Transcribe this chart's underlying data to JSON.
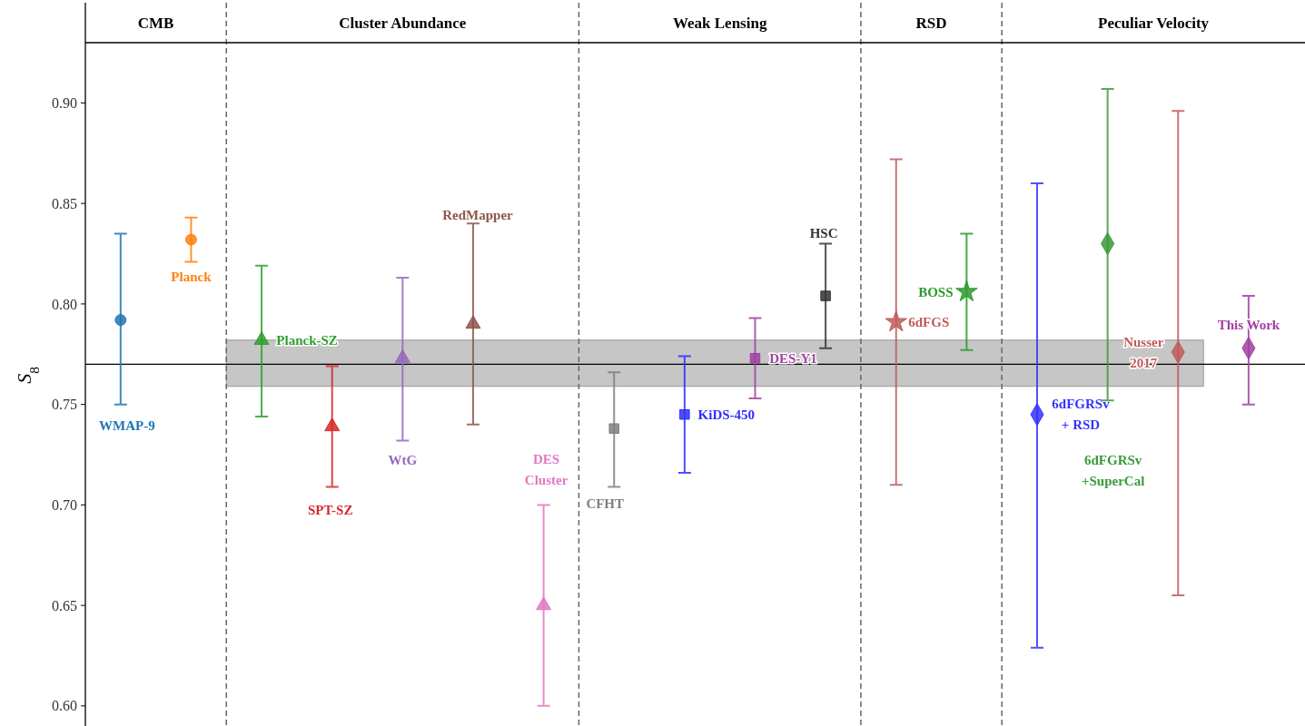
{
  "chart_data": {
    "type": "scatter",
    "ylabel": "S$_{8}$",
    "categories": [
      null,
      null,
      null,
      null,
      null,
      null,
      null,
      null,
      null,
      null,
      null,
      null,
      null,
      null,
      null,
      null,
      null
    ],
    "ylim": [
      0.59,
      0.93
    ],
    "yticks": [
      {
        "value": 0.6,
        "label": "0.60"
      },
      {
        "value": 0.65,
        "label": "0.65"
      },
      {
        "value": 0.7,
        "label": "0.70"
      },
      {
        "value": 0.75,
        "label": "0.75"
      },
      {
        "value": 0.8,
        "label": "0.80"
      },
      {
        "value": 0.85,
        "label": "0.85"
      },
      {
        "value": 0.9,
        "label": "0.90"
      }
    ],
    "tick_labels": "y",
    "grid": false,
    "annotations": [
      "CMB",
      "Cluster Abundance",
      "Weak Lensing",
      "RSD",
      "Peculiar Velocity"
    ],
    "bands": [
      {
        "axis": "y",
        "from": 0.759,
        "to": 0.782,
        "color": "#c0c0c0"
      }
    ],
    "ref_lines": [
      {
        "axis": "y",
        "value": 0.77,
        "color": "#000000"
      }
    ],
    "series": [
      {
        "name": "WMAP-9",
        "color": "#1f77b4",
        "marker": "circle",
        "values": [
          0.792,
          null,
          null,
          null,
          null,
          null,
          null,
          null,
          null,
          null,
          null,
          null,
          null,
          null,
          null,
          null,
          null
        ],
        "errors": [
          [
            0.75,
            0.835
          ],
          null,
          null,
          null,
          null,
          null,
          null,
          null,
          null,
          null,
          null,
          null,
          null,
          null,
          null,
          null,
          null
        ]
      },
      {
        "name": "Planck",
        "color": "#ff7f0e",
        "marker": "circle",
        "values": [
          null,
          0.832,
          null,
          null,
          null,
          null,
          null,
          null,
          null,
          null,
          null,
          null,
          null,
          null,
          null,
          null,
          null
        ],
        "errors": [
          null,
          [
            0.821,
            0.843
          ],
          null,
          null,
          null,
          null,
          null,
          null,
          null,
          null,
          null,
          null,
          null,
          null,
          null,
          null,
          null
        ]
      },
      {
        "name": "Planck-SZ",
        "color": "#2ca02c",
        "marker": "triangle",
        "values": [
          null,
          null,
          0.782,
          null,
          null,
          null,
          null,
          null,
          null,
          null,
          null,
          null,
          null,
          null,
          null,
          null,
          null
        ],
        "errors": [
          null,
          null,
          [
            0.744,
            0.819
          ],
          null,
          null,
          null,
          null,
          null,
          null,
          null,
          null,
          null,
          null,
          null,
          null,
          null,
          null
        ]
      },
      {
        "name": "SPT-SZ",
        "color": "#d62728",
        "marker": "triangle",
        "values": [
          null,
          null,
          null,
          0.739,
          null,
          null,
          null,
          null,
          null,
          null,
          null,
          null,
          null,
          null,
          null,
          null,
          null
        ],
        "errors": [
          null,
          null,
          null,
          [
            0.709,
            0.769
          ],
          null,
          null,
          null,
          null,
          null,
          null,
          null,
          null,
          null,
          null,
          null,
          null,
          null
        ]
      },
      {
        "name": "WtG",
        "color": "#9467bd",
        "marker": "triangle",
        "values": [
          null,
          null,
          null,
          null,
          0.773,
          null,
          null,
          null,
          null,
          null,
          null,
          null,
          null,
          null,
          null,
          null,
          null
        ],
        "errors": [
          null,
          null,
          null,
          null,
          [
            0.732,
            0.813
          ],
          null,
          null,
          null,
          null,
          null,
          null,
          null,
          null,
          null,
          null,
          null,
          null
        ]
      },
      {
        "name": "RedMapper",
        "color": "#8c564b",
        "marker": "triangle",
        "values": [
          null,
          null,
          null,
          null,
          null,
          0.79,
          null,
          null,
          null,
          null,
          null,
          null,
          null,
          null,
          null,
          null,
          null
        ],
        "errors": [
          null,
          null,
          null,
          null,
          null,
          [
            0.74,
            0.84
          ],
          null,
          null,
          null,
          null,
          null,
          null,
          null,
          null,
          null,
          null,
          null
        ]
      },
      {
        "name": "DES\nCluster",
        "color": "#e377c2",
        "marker": "triangle",
        "values": [
          null,
          null,
          null,
          null,
          null,
          null,
          0.65,
          null,
          null,
          null,
          null,
          null,
          null,
          null,
          null,
          null,
          null
        ],
        "errors": [
          null,
          null,
          null,
          null,
          null,
          null,
          [
            0.6,
            0.7
          ],
          null,
          null,
          null,
          null,
          null,
          null,
          null,
          null,
          null,
          null
        ]
      },
      {
        "name": "CFHT",
        "color": "#7f7f7f",
        "marker": "square",
        "values": [
          null,
          null,
          null,
          null,
          null,
          null,
          null,
          0.738,
          null,
          null,
          null,
          null,
          null,
          null,
          null,
          null,
          null
        ],
        "errors": [
          null,
          null,
          null,
          null,
          null,
          null,
          null,
          [
            0.709,
            0.766
          ],
          null,
          null,
          null,
          null,
          null,
          null,
          null,
          null,
          null
        ]
      },
      {
        "name": "KiDS-450",
        "color": "#2f2fff",
        "marker": "square",
        "values": [
          null,
          null,
          null,
          null,
          null,
          null,
          null,
          null,
          0.745,
          null,
          null,
          null,
          null,
          null,
          null,
          null,
          null
        ],
        "errors": [
          null,
          null,
          null,
          null,
          null,
          null,
          null,
          null,
          [
            0.716,
            0.774
          ],
          null,
          null,
          null,
          null,
          null,
          null,
          null,
          null
        ]
      },
      {
        "name": "DES-Y1",
        "color": "#a040a0",
        "marker": "square",
        "values": [
          null,
          null,
          null,
          null,
          null,
          null,
          null,
          null,
          null,
          0.773,
          null,
          null,
          null,
          null,
          null,
          null,
          null
        ],
        "errors": [
          null,
          null,
          null,
          null,
          null,
          null,
          null,
          null,
          null,
          [
            0.753,
            0.793
          ],
          null,
          null,
          null,
          null,
          null,
          null,
          null
        ]
      },
      {
        "name": "HSC",
        "color": "#333333",
        "marker": "square",
        "values": [
          null,
          null,
          null,
          null,
          null,
          null,
          null,
          null,
          null,
          null,
          0.804,
          null,
          null,
          null,
          null,
          null,
          null
        ],
        "errors": [
          null,
          null,
          null,
          null,
          null,
          null,
          null,
          null,
          null,
          null,
          [
            0.778,
            0.83
          ],
          null,
          null,
          null,
          null,
          null,
          null
        ]
      },
      {
        "name": "6dFGS",
        "color": "#bf5b5b",
        "marker": "star",
        "values": [
          null,
          null,
          null,
          null,
          null,
          null,
          null,
          null,
          null,
          null,
          null,
          0.791,
          null,
          null,
          null,
          null,
          null
        ],
        "errors": [
          null,
          null,
          null,
          null,
          null,
          null,
          null,
          null,
          null,
          null,
          null,
          [
            0.71,
            0.872
          ],
          null,
          null,
          null,
          null,
          null
        ]
      },
      {
        "name": "BOSS",
        "color": "#2a9a2a",
        "marker": "star",
        "values": [
          null,
          null,
          null,
          null,
          null,
          null,
          null,
          null,
          null,
          null,
          null,
          null,
          0.806,
          null,
          null,
          null,
          null
        ],
        "errors": [
          null,
          null,
          null,
          null,
          null,
          null,
          null,
          null,
          null,
          null,
          null,
          null,
          [
            0.777,
            0.835
          ],
          null,
          null,
          null,
          null
        ]
      },
      {
        "name": "6dFGRSv\n+ RSD",
        "color": "#3333ff",
        "marker": "diamond",
        "values": [
          null,
          null,
          null,
          null,
          null,
          null,
          null,
          null,
          null,
          null,
          null,
          null,
          null,
          0.745,
          null,
          null,
          null
        ],
        "errors": [
          null,
          null,
          null,
          null,
          null,
          null,
          null,
          null,
          null,
          null,
          null,
          null,
          null,
          [
            0.629,
            0.86
          ],
          null,
          null,
          null
        ]
      },
      {
        "name": "6dFGRSv\n+SuperCal",
        "color": "#3a9a3a",
        "marker": "diamond",
        "values": [
          null,
          null,
          null,
          null,
          null,
          null,
          null,
          null,
          null,
          null,
          null,
          null,
          null,
          null,
          0.83,
          null,
          null
        ],
        "errors": [
          null,
          null,
          null,
          null,
          null,
          null,
          null,
          null,
          null,
          null,
          null,
          null,
          null,
          null,
          [
            0.752,
            0.907
          ],
          null,
          null
        ]
      },
      {
        "name": "Nusser\n2017",
        "color": "#bf5b5b",
        "marker": "diamond",
        "values": [
          null,
          null,
          null,
          null,
          null,
          null,
          null,
          null,
          null,
          null,
          null,
          null,
          null,
          null,
          null,
          0.776,
          null
        ],
        "errors": [
          null,
          null,
          null,
          null,
          null,
          null,
          null,
          null,
          null,
          null,
          null,
          null,
          null,
          null,
          null,
          [
            0.655,
            0.896
          ],
          null
        ]
      },
      {
        "name": "This Work",
        "color": "#a040a0",
        "marker": "diamond",
        "values": [
          null,
          null,
          null,
          null,
          null,
          null,
          null,
          null,
          null,
          null,
          null,
          null,
          null,
          null,
          null,
          null,
          0.778
        ],
        "errors": [
          null,
          null,
          null,
          null,
          null,
          null,
          null,
          null,
          null,
          null,
          null,
          null,
          null,
          null,
          null,
          null,
          [
            0.75,
            0.804
          ]
        ]
      }
    ]
  }
}
